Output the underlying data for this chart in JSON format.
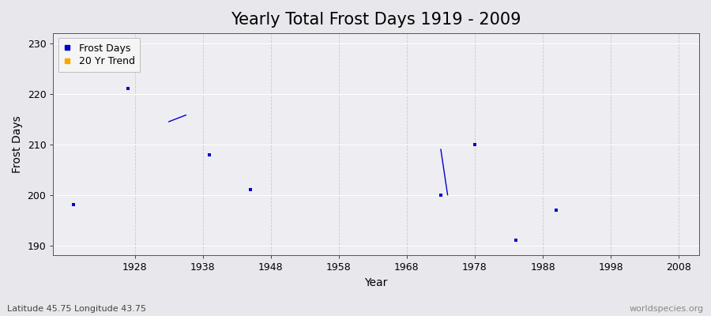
{
  "title": "Yearly Total Frost Days 1919 - 2009",
  "xlabel": "Year",
  "ylabel": "Frost Days",
  "xlim": [
    1916,
    2011
  ],
  "ylim": [
    188,
    232
  ],
  "yticks": [
    190,
    200,
    210,
    220,
    230
  ],
  "xticks": [
    1928,
    1938,
    1948,
    1958,
    1968,
    1978,
    1988,
    1998,
    2008
  ],
  "frost_days_x": [
    1919,
    1927,
    1939,
    1945,
    1973,
    1978,
    1984,
    1990
  ],
  "frost_days_y": [
    198,
    221,
    208,
    201,
    200,
    210,
    191,
    197
  ],
  "trend_line1_x": [
    1933,
    1935.5
  ],
  "trend_line1_y": [
    214.5,
    215.8
  ],
  "trend_line2_x": [
    1973,
    1974
  ],
  "trend_line2_y": [
    209,
    200
  ],
  "scatter_color": "#0000cc",
  "trend_color": "#0000cc",
  "legend_scatter_color": "#0000cc",
  "legend_trend_color": "#ffa500",
  "fig_bg_color": "#e8e8ec",
  "plot_bg_color": "#ededf2",
  "grid_h_color": "#ffffff",
  "grid_v_color": "#c8c8d8",
  "subtitle": "Latitude 45.75 Longitude 43.75",
  "watermark": "worldspecies.org",
  "title_fontsize": 15,
  "axis_fontsize": 10,
  "tick_fontsize": 9,
  "label_fontsize": 9
}
